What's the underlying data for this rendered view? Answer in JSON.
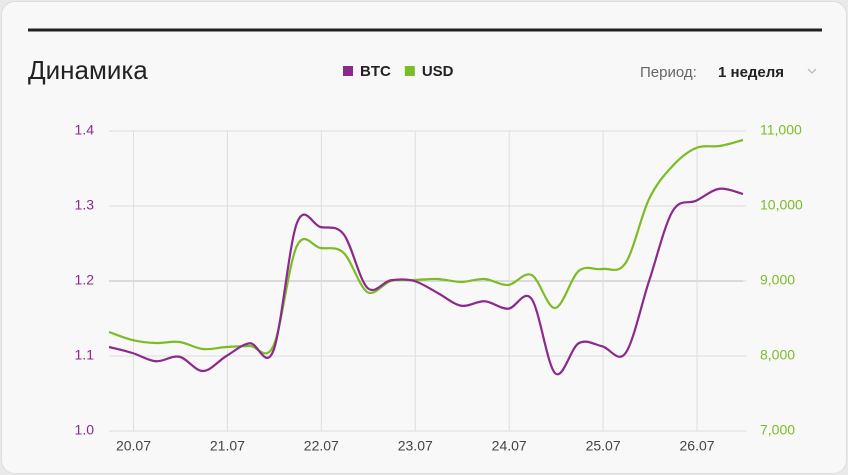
{
  "header": {
    "title": "Динамика",
    "period_label": "Период:",
    "period_value": "1 неделя"
  },
  "chart_data": {
    "type": "line",
    "categories": [
      null,
      "20.07",
      null,
      null,
      null,
      "21.07",
      null,
      null,
      null,
      "22.07",
      null,
      null,
      null,
      "23.07",
      null,
      null,
      null,
      "24.07",
      null,
      null,
      null,
      "25.07",
      null,
      null,
      null,
      "26.07",
      null,
      null
    ],
    "series": [
      {
        "name": "BTC",
        "color": "#8b2a8b",
        "axis": "y",
        "values": [
          1.112,
          1.104,
          1.093,
          1.099,
          1.08,
          1.1,
          1.117,
          1.107,
          1.277,
          1.272,
          1.262,
          1.191,
          1.201,
          1.2,
          1.184,
          1.167,
          1.173,
          1.163,
          1.176,
          1.077,
          1.117,
          1.113,
          1.104,
          1.2,
          1.293,
          1.307,
          1.323,
          1.316
        ]
      },
      {
        "name": "USD",
        "color": "#7cbc26",
        "axis": "y2",
        "values": [
          8320,
          8213,
          8173,
          8187,
          8093,
          8120,
          8133,
          8133,
          9467,
          9440,
          9373,
          8853,
          9000,
          9013,
          9027,
          8987,
          9027,
          8947,
          9080,
          8640,
          9133,
          9160,
          9240,
          10093,
          10533,
          10773,
          10800,
          10880
        ]
      }
    ],
    "ylim": [
      1.0,
      1.4
    ],
    "yticks": [
      {
        "value": 1.0,
        "label": "1.0"
      },
      1.1,
      1.2,
      1.3,
      1.4
    ],
    "y2lim": [
      7000,
      11000
    ],
    "y2ticks": [
      {
        "value": 7000,
        "label": "7,000"
      },
      {
        "value": 8000,
        "label": "8,000"
      },
      {
        "value": 9000,
        "label": "9,000"
      },
      {
        "value": 10000,
        "label": "10,000"
      },
      {
        "value": 11000,
        "label": "11,000"
      }
    ],
    "grid": true
  }
}
